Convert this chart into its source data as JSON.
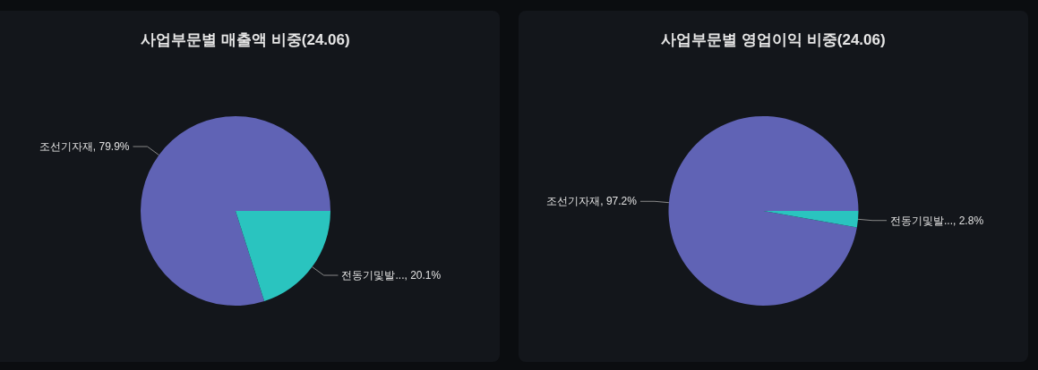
{
  "chart_data": [
    {
      "type": "pie",
      "title": "사업부문별 매출액 비중(24.06)",
      "categories": [
        "조선기자재",
        "전동기및발..."
      ],
      "values": [
        79.9,
        20.1
      ],
      "value_labels": [
        ", 79.9%",
        ", 20.1%"
      ],
      "colors": [
        "#6063b5",
        "#2ac4bf"
      ]
    },
    {
      "type": "pie",
      "title": "사업부문별 영업이익 비중(24.06)",
      "categories": [
        "조선기자재",
        "전동기및발..."
      ],
      "values": [
        97.2,
        2.8
      ],
      "value_labels": [
        ", 97.2%",
        ", 2.8%"
      ],
      "colors": [
        "#6063b5",
        "#2ac4bf"
      ]
    }
  ]
}
